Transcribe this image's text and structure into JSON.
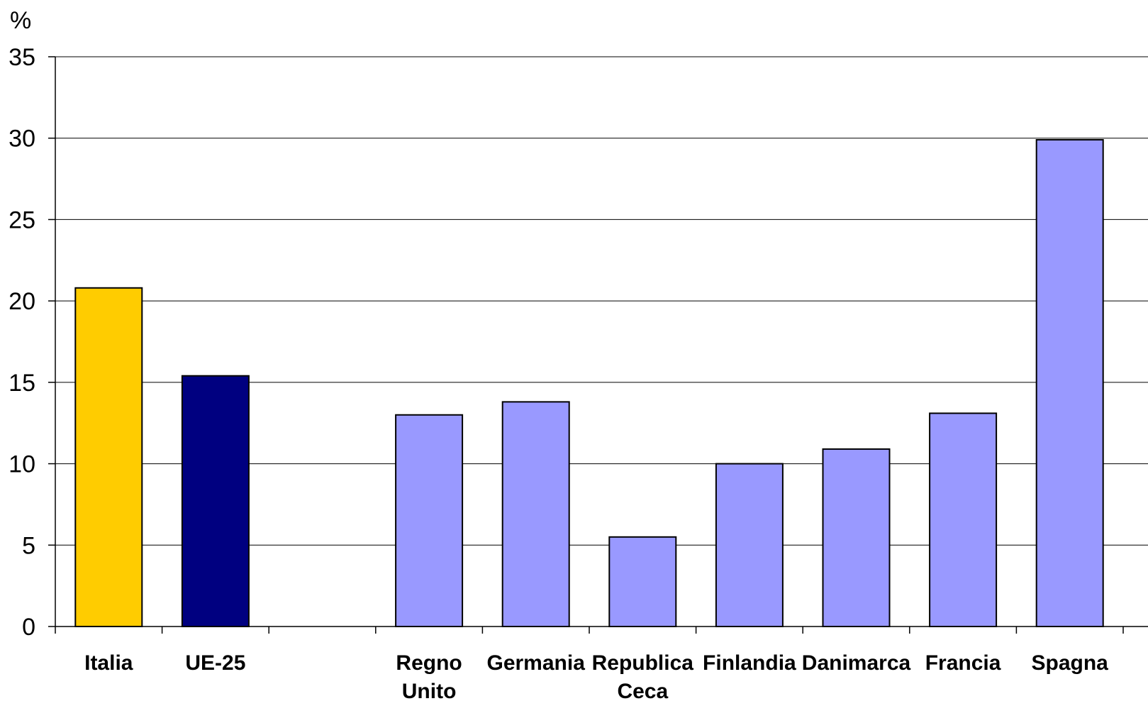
{
  "chart_data": {
    "type": "bar",
    "unit_label": "%",
    "categories": [
      [
        "Italia"
      ],
      [
        "UE-25"
      ],
      [
        ""
      ],
      [
        "Regno",
        "Unito"
      ],
      [
        "Germania"
      ],
      [
        "Republica",
        "Ceca"
      ],
      [
        "Finlandia"
      ],
      [
        "Danimarca"
      ],
      [
        "Francia"
      ],
      [
        "Spagna"
      ]
    ],
    "values": [
      20.8,
      15.4,
      null,
      13.0,
      13.8,
      5.5,
      10.0,
      10.9,
      13.1,
      29.9
    ],
    "bar_colors": [
      "#ffcc00",
      "#000080",
      null,
      "#9999ff",
      "#9999ff",
      "#9999ff",
      "#9999ff",
      "#9999ff",
      "#9999ff",
      "#9999ff"
    ],
    "ylim": [
      0,
      35
    ],
    "yticks": [
      0,
      5,
      10,
      15,
      20,
      25,
      30,
      35
    ],
    "grid": true,
    "legend": "none"
  }
}
